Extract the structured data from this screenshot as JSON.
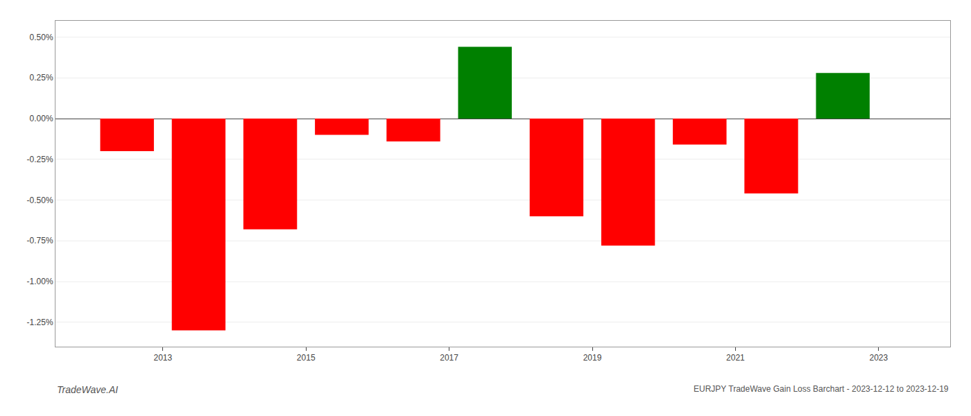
{
  "chart_data": {
    "type": "bar",
    "x": [
      2012.5,
      2013.5,
      2014.5,
      2015.5,
      2016.5,
      2017.5,
      2018.5,
      2019.5,
      2020.5,
      2021.5,
      2022.5
    ],
    "values": [
      -0.2,
      -1.3,
      -0.68,
      -0.1,
      -0.14,
      0.44,
      -0.6,
      -0.78,
      -0.16,
      -0.46,
      0.28
    ],
    "colors": [
      "#ff0000",
      "#ff0000",
      "#ff0000",
      "#ff0000",
      "#ff0000",
      "#008000",
      "#ff0000",
      "#ff0000",
      "#ff0000",
      "#ff0000",
      "#008000"
    ],
    "xlim": [
      2011.5,
      2024.0
    ],
    "xticks": [
      2013,
      2015,
      2017,
      2019,
      2021,
      2023
    ],
    "ylim": [
      -1.4,
      0.6
    ],
    "yticks": [
      {
        "value": -1.25,
        "label": "-1.25%"
      },
      {
        "value": -1.0,
        "label": "-1.00%"
      },
      {
        "value": -0.75,
        "label": "-0.75%"
      },
      {
        "value": -0.5,
        "label": "-0.50%"
      },
      {
        "value": -0.25,
        "label": "-0.25%"
      },
      {
        "value": 0.0,
        "label": "0.00%"
      },
      {
        "value": 0.25,
        "label": "0.25%"
      },
      {
        "value": 0.5,
        "label": "0.50%"
      }
    ],
    "grid": "y",
    "annotations": [
      "TradeWave.AI",
      "EURJPY TradeWave Gain Loss Barchart - 2023-12-12 to 2023-12-19"
    ]
  }
}
